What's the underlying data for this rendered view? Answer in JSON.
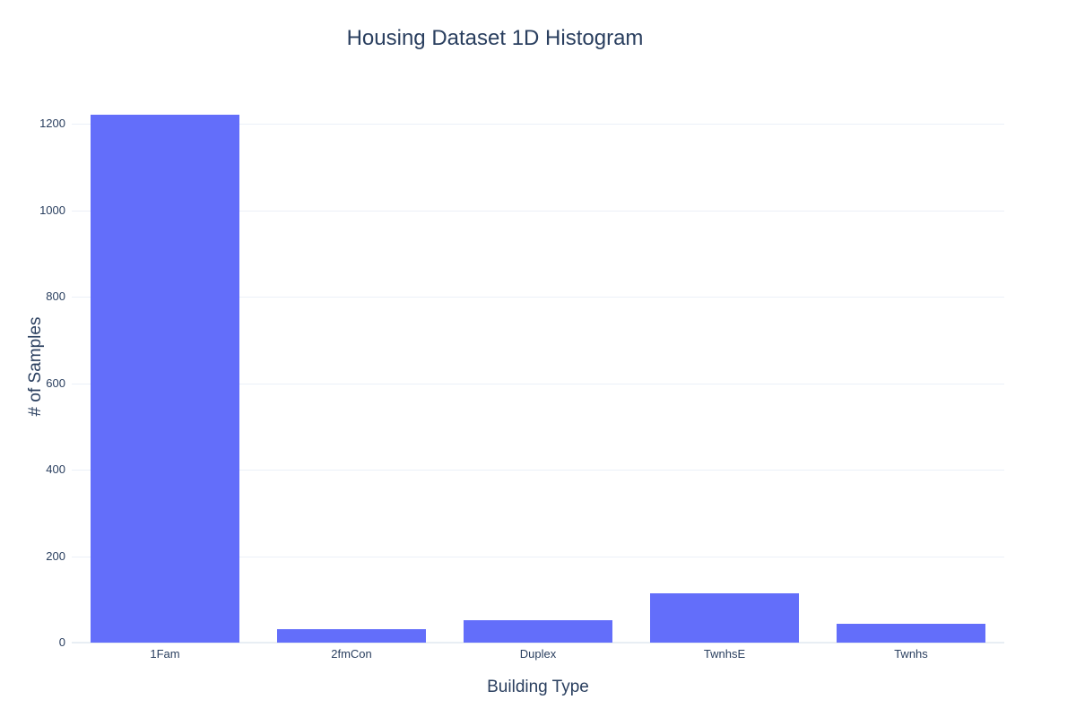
{
  "figure": {
    "title": "Housing Dataset 1D Histogram"
  },
  "chart_data": {
    "type": "bar",
    "title": "Housing Dataset 1D Histogram",
    "xlabel": "Building Type",
    "ylabel": "# of Samples",
    "categories": [
      "1Fam",
      "2fmCon",
      "Duplex",
      "TwnhsE",
      "Twnhs"
    ],
    "values": [
      1220,
      31,
      52,
      114,
      43
    ],
    "yticks": [
      0,
      200,
      400,
      600,
      800,
      1000,
      1200
    ],
    "ylim": [
      0,
      1279
    ],
    "grid": true,
    "legend": false,
    "bar_width_fraction": 0.8,
    "colors": {
      "bar": "#636efa",
      "grid": "#ebf0f8",
      "zeroline": "#e8eef4",
      "text": "#2a3f5f",
      "background": "#ffffff"
    }
  }
}
